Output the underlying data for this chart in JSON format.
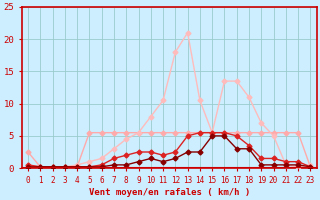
{
  "xlabel": "Vent moyen/en rafales ( km/h )",
  "bg_color": "#cceeff",
  "grid_color": "#99cccc",
  "axis_color": "#cc0000",
  "text_color": "#cc0000",
  "xlim": [
    -0.5,
    23.5
  ],
  "ylim": [
    0,
    25
  ],
  "yticks": [
    0,
    5,
    10,
    15,
    20,
    25
  ],
  "xticks": [
    0,
    1,
    2,
    3,
    4,
    5,
    6,
    7,
    8,
    9,
    10,
    11,
    12,
    13,
    14,
    15,
    16,
    17,
    18,
    19,
    20,
    21,
    22,
    23
  ],
  "line_flat_x": [
    0,
    1,
    2,
    3,
    4,
    5,
    6,
    7,
    8,
    9,
    10,
    11,
    12,
    13,
    14,
    15,
    16,
    17,
    18,
    19,
    20,
    21,
    22,
    23
  ],
  "line_flat_y": [
    2.5,
    0.2,
    0.2,
    0.2,
    0.2,
    5.5,
    5.5,
    5.5,
    5.5,
    5.5,
    5.5,
    5.5,
    5.5,
    5.5,
    5.5,
    5.5,
    5.5,
    5.5,
    5.5,
    5.5,
    5.5,
    5.5,
    5.5,
    0.2
  ],
  "line_flat_color": "#ffaaaa",
  "line_peak_x": [
    0,
    1,
    2,
    3,
    4,
    5,
    6,
    7,
    8,
    9,
    10,
    11,
    12,
    13,
    14,
    15,
    16,
    17,
    18,
    19,
    20,
    21,
    22,
    23
  ],
  "line_peak_y": [
    0.5,
    0.2,
    0.2,
    0.2,
    0.5,
    1.0,
    1.5,
    3.0,
    4.5,
    5.5,
    8.0,
    10.5,
    18.0,
    21.0,
    10.5,
    5.5,
    13.5,
    13.5,
    11.0,
    7.0,
    5.0,
    0.5,
    0.2,
    0.5
  ],
  "line_peak_color": "#ffbbbb",
  "line_med_x": [
    0,
    1,
    2,
    3,
    4,
    5,
    6,
    7,
    8,
    9,
    10,
    11,
    12,
    13,
    14,
    15,
    16,
    17,
    18,
    19,
    20,
    21,
    22,
    23
  ],
  "line_med_y": [
    0.5,
    0.2,
    0.2,
    0.2,
    0.2,
    0.2,
    0.5,
    1.5,
    2.0,
    2.5,
    2.5,
    2.0,
    2.5,
    5.0,
    5.5,
    5.5,
    5.5,
    5.0,
    3.5,
    1.5,
    1.5,
    1.0,
    1.0,
    0.2
  ],
  "line_med_color": "#dd2222",
  "line_low_x": [
    0,
    1,
    2,
    3,
    4,
    5,
    6,
    7,
    8,
    9,
    10,
    11,
    12,
    13,
    14,
    15,
    16,
    17,
    18,
    19,
    20,
    21,
    22,
    23
  ],
  "line_low_y": [
    0.2,
    0.2,
    0.2,
    0.2,
    0.2,
    0.2,
    0.2,
    0.5,
    0.5,
    1.0,
    1.5,
    1.0,
    1.5,
    2.5,
    2.5,
    5.0,
    5.0,
    3.0,
    3.0,
    0.5,
    0.5,
    0.5,
    0.5,
    0.2
  ],
  "line_low_color": "#880000",
  "marker": "D",
  "marker_size": 2.5,
  "line_lw": 1.0
}
